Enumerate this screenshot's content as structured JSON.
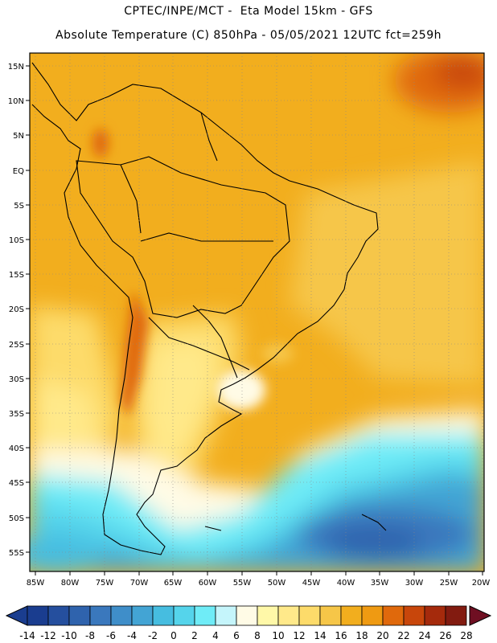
{
  "header": {
    "line1": "CPTEC/INPE/MCT -  Eta Model 15km - GFS",
    "line2": "Absolute Temperature (C) 850hPa - 05/05/2021 12UTC fct=259h"
  },
  "map": {
    "lat_labels": [
      "15N",
      "10N",
      "5N",
      "EQ",
      "5S",
      "10S",
      "15S",
      "20S",
      "25S",
      "30S",
      "35S",
      "40S",
      "45S",
      "50S",
      "55S"
    ],
    "lon_labels": [
      "85W",
      "80W",
      "75W",
      "70W",
      "65W",
      "60W",
      "55W",
      "50W",
      "45W",
      "40W",
      "35W",
      "30W",
      "25W",
      "20W"
    ]
  },
  "colorbar": {
    "labels": [
      "-14",
      "-12",
      "-10",
      "-8",
      "-6",
      "-4",
      "-2",
      "0",
      "2",
      "4",
      "6",
      "8",
      "10",
      "12",
      "14",
      "16",
      "18",
      "20",
      "22",
      "24",
      "26",
      "28"
    ],
    "colors": [
      "#1a3d8f",
      "#254f9e",
      "#2f63ad",
      "#3a78bd",
      "#3f8ec9",
      "#43a4d4",
      "#46bde0",
      "#55d4eb",
      "#6fecf7",
      "#c5f5fb",
      "#fffbe6",
      "#fff8a8",
      "#ffe98a",
      "#fddb6a",
      "#f6c648",
      "#f2ae1e",
      "#ef9a12",
      "#e0690c",
      "#c8460b",
      "#a52a0c",
      "#821b10"
    ]
  }
}
